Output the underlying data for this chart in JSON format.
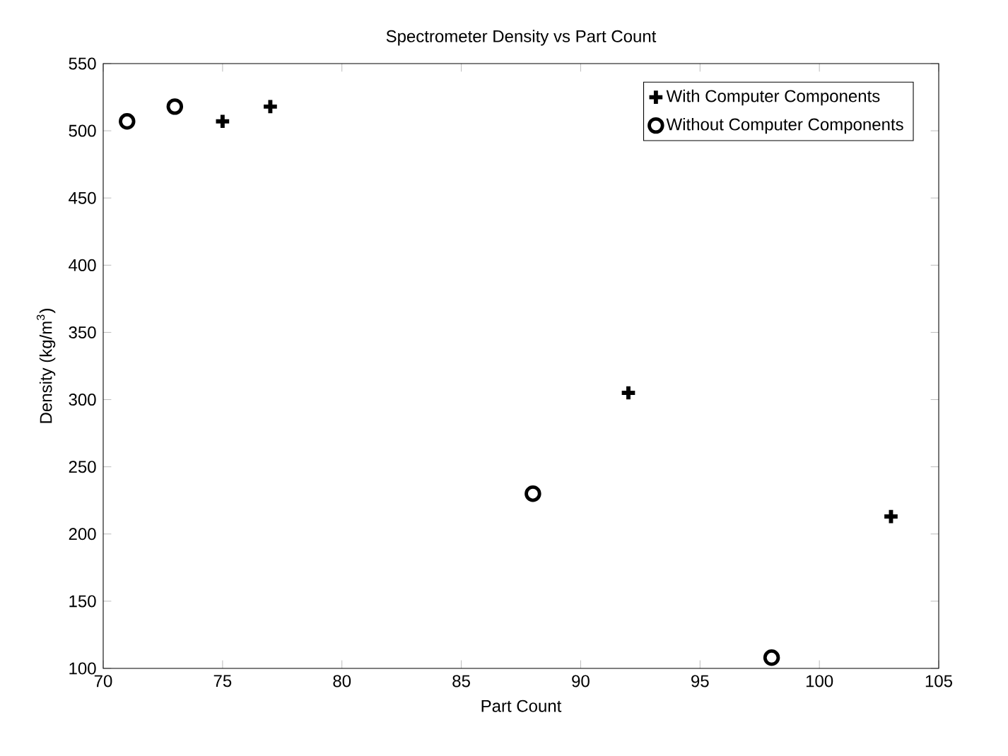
{
  "chart_data": {
    "type": "scatter",
    "title": "Spectrometer Density vs  Part Count",
    "xlabel": "Part Count",
    "ylabel": "Density (kg/m$^{3}$)",
    "xlim": [
      70,
      105
    ],
    "xticks": [
      70,
      75,
      80,
      85,
      90,
      95,
      100,
      105
    ],
    "ylim": [
      100,
      550
    ],
    "yticks": [
      100,
      150,
      200,
      250,
      300,
      350,
      400,
      450,
      500,
      550
    ],
    "grid": false,
    "legend": "top right",
    "series": [
      {
        "name": "With Computer Components",
        "color": "#000000",
        "marker": "cross",
        "x": [
          75,
          77,
          92,
          103
        ],
        "values": [
          507,
          518,
          305,
          213
        ]
      },
      {
        "name": "Without Computer Components",
        "color": "#000000",
        "marker": "circle",
        "x": [
          71,
          73,
          88,
          98
        ],
        "values": [
          507,
          518,
          230,
          108
        ]
      }
    ]
  }
}
